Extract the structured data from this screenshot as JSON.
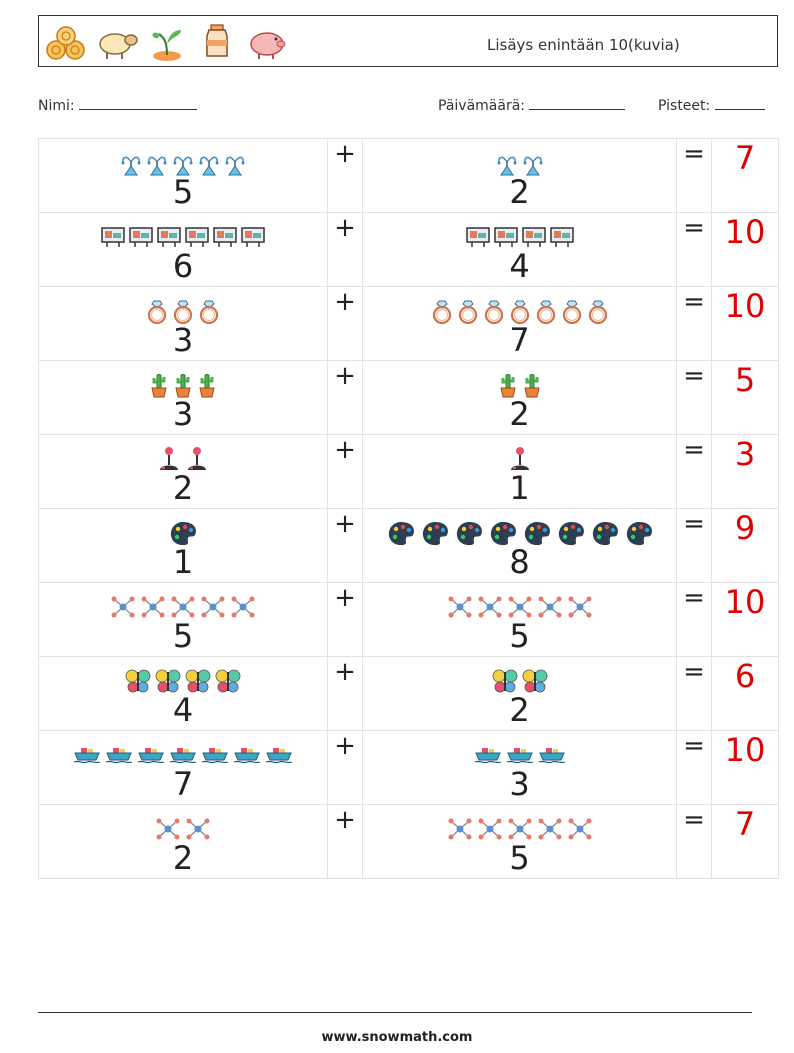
{
  "header": {
    "title": "Lisäys enintään 10(kuvia)",
    "icons": [
      "hay-bales-icon",
      "sheep-icon",
      "sprout-icon",
      "milk-churn-icon",
      "pig-icon"
    ]
  },
  "fields": {
    "name_label": "Nimi:",
    "date_label": "Päivämäärä:",
    "score_label": "Pisteet:"
  },
  "problems": [
    {
      "a": 5,
      "b": 2,
      "op": "+",
      "eq": "=",
      "result": "7",
      "icon": "watering-plant-icon"
    },
    {
      "a": 6,
      "b": 4,
      "op": "+",
      "eq": "=",
      "result": "10",
      "icon": "billboard-icon"
    },
    {
      "a": 3,
      "b": 7,
      "op": "+",
      "eq": "=",
      "result": "10",
      "icon": "ring-icon"
    },
    {
      "a": 3,
      "b": 2,
      "op": "+",
      "eq": "=",
      "result": "5",
      "icon": "cactus-icon"
    },
    {
      "a": 2,
      "b": 1,
      "op": "+",
      "eq": "=",
      "result": "3",
      "icon": "joystick-icon"
    },
    {
      "a": 1,
      "b": 8,
      "op": "+",
      "eq": "=",
      "result": "9",
      "icon": "palette-icon"
    },
    {
      "a": 5,
      "b": 5,
      "op": "+",
      "eq": "=",
      "result": "10",
      "icon": "molecule-icon"
    },
    {
      "a": 4,
      "b": 2,
      "op": "+",
      "eq": "=",
      "result": "6",
      "icon": "butterfly-icon"
    },
    {
      "a": 7,
      "b": 3,
      "op": "+",
      "eq": "=",
      "result": "10",
      "icon": "ship-icon"
    },
    {
      "a": 2,
      "b": 5,
      "op": "+",
      "eq": "=",
      "result": "7",
      "icon": "molecule-icon"
    }
  ],
  "footer": {
    "url": "www.snowmath.com"
  }
}
